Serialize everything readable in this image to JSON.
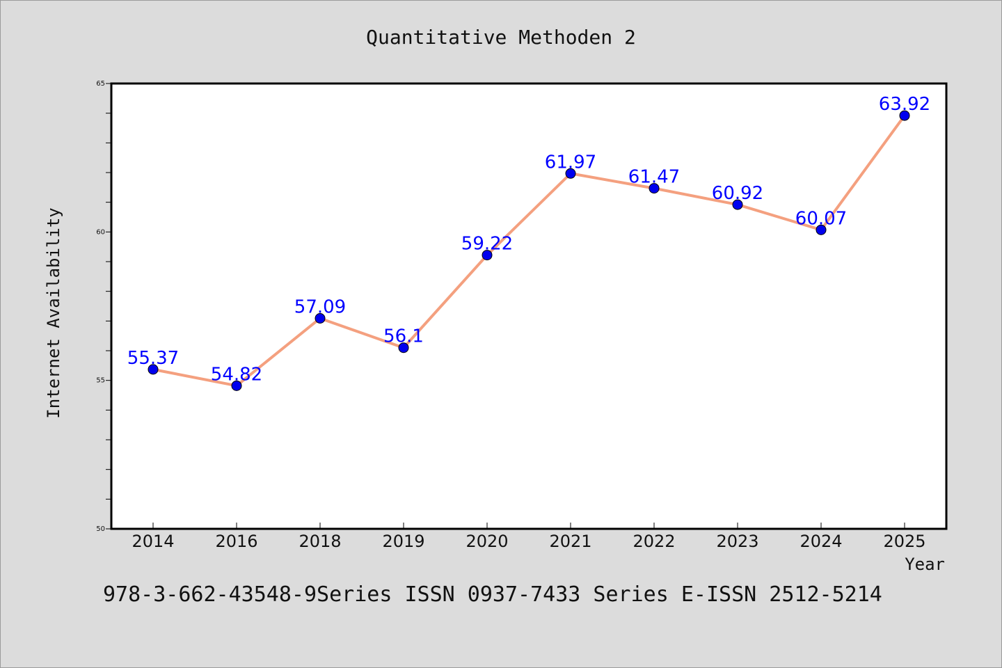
{
  "chart_data": {
    "type": "line",
    "title": "Quantitative Methoden 2",
    "xlabel": "Year",
    "ylabel": "Internet Availability",
    "categories": [
      "2014",
      "2016",
      "2018",
      "2019",
      "2020",
      "2021",
      "2022",
      "2023",
      "2024",
      "2025"
    ],
    "series": [
      {
        "values": [
          55.37,
          54.82,
          57.09,
          56.1,
          59.22,
          61.97,
          61.47,
          60.92,
          60.07,
          63.92
        ],
        "labels": [
          "55.37",
          "54.82",
          "57.09",
          "56.1",
          "59.22",
          "61.97",
          "61.47",
          "60.92",
          "60.07",
          "63.92"
        ]
      }
    ],
    "ylim": [
      50,
      65
    ],
    "yticks": [
      "50",
      "55",
      "60",
      "65"
    ],
    "grid": false,
    "legend": "none",
    "colors": {
      "line": "#f4a07f",
      "marker": "#0000ee",
      "label": "#0000ff",
      "background": "#dcdcdc",
      "plot_background": "#ffffff"
    }
  },
  "footer_text": "978-3-662-43548-9Series ISSN 0937-7433 Series E-ISSN 2512-5214"
}
